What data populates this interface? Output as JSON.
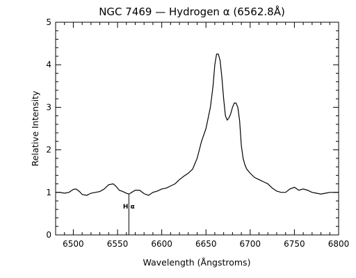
{
  "chart_data": {
    "type": "line",
    "title": "NGC 7469 — Hydrogen α (6562.8Å)",
    "xlabel": "Wavelength (Ångstroms)",
    "ylabel": "Relative Intensity",
    "xlim": [
      6480,
      6800
    ],
    "ylim": [
      0,
      5
    ],
    "xticks": [
      6500,
      6550,
      6600,
      6650,
      6700,
      6750,
      6800
    ],
    "yticks": [
      0,
      1,
      2,
      3,
      4,
      5
    ],
    "grid": false,
    "annotation": {
      "label": "H α",
      "x": 6562.8,
      "y_top": 0.95
    },
    "series": [
      {
        "x": [
          6480,
          6485,
          6490,
          6495,
          6500,
          6503,
          6507,
          6510,
          6515,
          6520,
          6525,
          6530,
          6535,
          6540,
          6545,
          6548,
          6552,
          6556,
          6560,
          6563,
          6566,
          6570,
          6575,
          6580,
          6585,
          6590,
          6595,
          6600,
          6605,
          6610,
          6615,
          6620,
          6625,
          6630,
          6635,
          6640,
          6645,
          6650,
          6655,
          6658,
          6660,
          6662,
          6664,
          6666,
          6668,
          6670,
          6672,
          6674,
          6676,
          6678,
          6680,
          6682,
          6684,
          6686,
          6688,
          6690,
          6692,
          6694,
          6696,
          6700,
          6705,
          6710,
          6715,
          6720,
          6725,
          6730,
          6735,
          6740,
          6745,
          6750,
          6755,
          6760,
          6765,
          6770,
          6775,
          6780,
          6785,
          6790,
          6795,
          6800
        ],
        "y": [
          1.0,
          1.0,
          0.98,
          1.0,
          1.07,
          1.08,
          1.02,
          0.95,
          0.93,
          0.98,
          1.0,
          1.02,
          1.08,
          1.18,
          1.2,
          1.15,
          1.05,
          1.02,
          0.98,
          0.96,
          1.0,
          1.05,
          1.05,
          0.97,
          0.93,
          1.0,
          1.03,
          1.08,
          1.1,
          1.15,
          1.2,
          1.3,
          1.38,
          1.45,
          1.55,
          1.8,
          2.2,
          2.5,
          3.0,
          3.5,
          4.0,
          4.25,
          4.25,
          4.1,
          3.7,
          3.2,
          2.8,
          2.7,
          2.75,
          2.85,
          3.0,
          3.1,
          3.1,
          3.0,
          2.7,
          2.1,
          1.8,
          1.65,
          1.55,
          1.45,
          1.35,
          1.3,
          1.25,
          1.2,
          1.1,
          1.03,
          1.0,
          1.0,
          1.08,
          1.12,
          1.05,
          1.08,
          1.05,
          1.0,
          0.98,
          0.96,
          0.98,
          1.0,
          1.0,
          1.0
        ]
      }
    ]
  }
}
